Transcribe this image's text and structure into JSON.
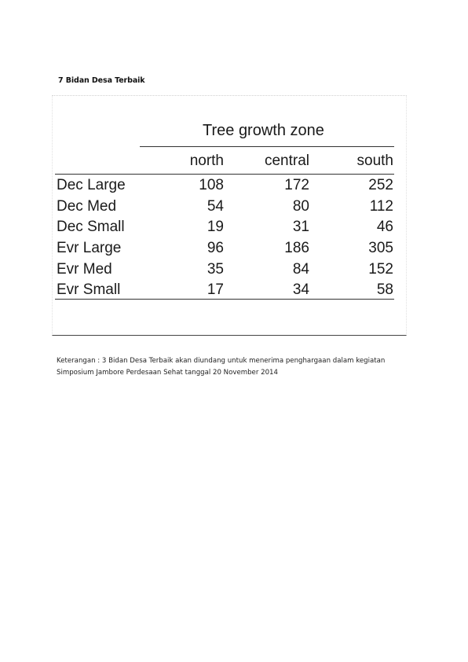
{
  "heading": "7 Bidan Desa Terbaik",
  "table": {
    "title": "Tree growth zone",
    "columns": [
      "north",
      "central",
      "south"
    ],
    "rows": [
      {
        "label": "Dec Large",
        "values": [
          "108",
          "172",
          "252"
        ]
      },
      {
        "label": "Dec Med",
        "values": [
          "54",
          "80",
          "112"
        ]
      },
      {
        "label": "Dec Small",
        "values": [
          "19",
          "31",
          "46"
        ]
      },
      {
        "label": "Evr Large",
        "values": [
          "96",
          "186",
          "305"
        ]
      },
      {
        "label": "Evr Med",
        "values": [
          "35",
          "84",
          "152"
        ]
      },
      {
        "label": "Evr Small",
        "values": [
          "17",
          "34",
          "58"
        ]
      }
    ]
  },
  "note": {
    "line1": "Keterangan : 3 Bidan Desa Terbaik akan diundang untuk menerima penghargaan dalam kegiatan",
    "line2": "Simposium Jambore Perdesaan Sehat tanggal 20 November 2014"
  }
}
